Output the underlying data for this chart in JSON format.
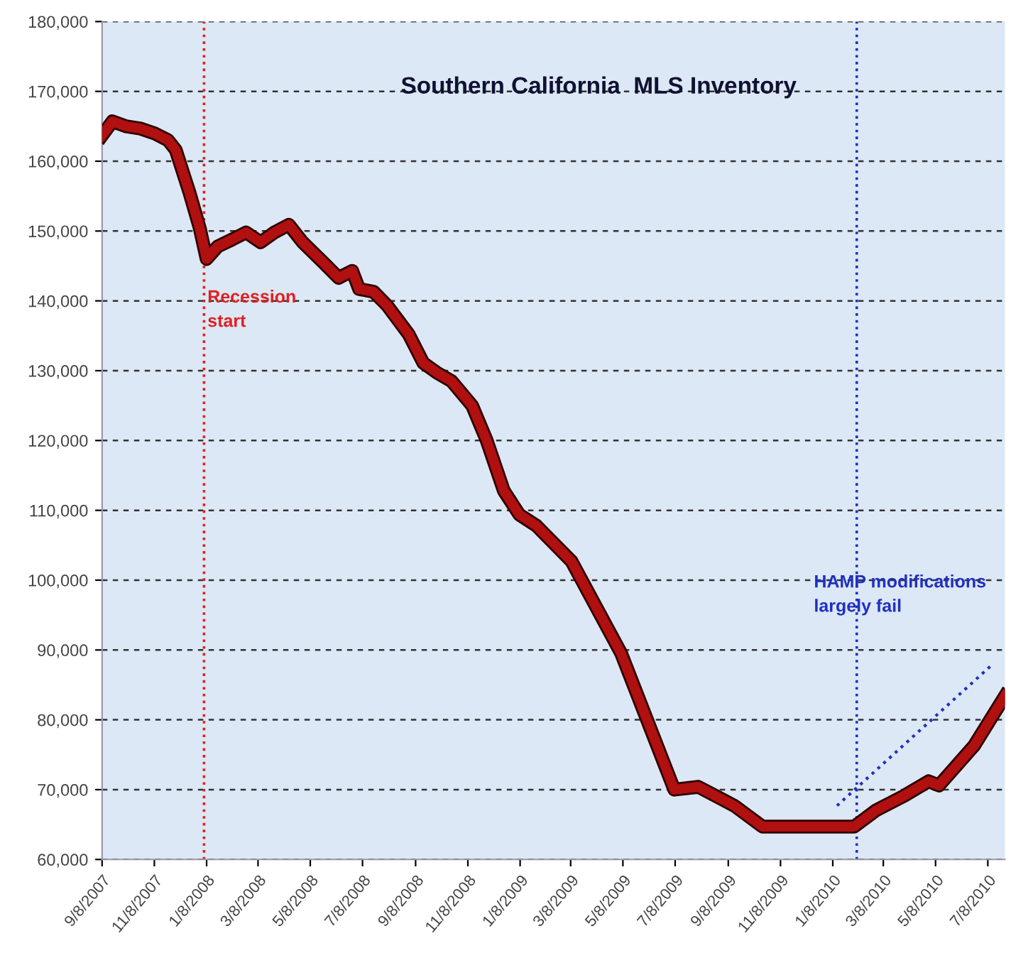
{
  "chart_data": {
    "type": "line",
    "title": "Southern California  MLS Inventory",
    "x": [
      "2007-09-08",
      "2007-09-20",
      "2007-10-06",
      "2007-10-22",
      "2007-11-08",
      "2007-11-24",
      "2007-12-03",
      "2007-12-19",
      "2007-12-31",
      "2008-01-08",
      "2008-01-21",
      "2008-02-07",
      "2008-02-23",
      "2008-03-11",
      "2008-03-27",
      "2008-04-13",
      "2008-04-29",
      "2008-05-24",
      "2008-06-10",
      "2008-06-26",
      "2008-07-04",
      "2008-07-21",
      "2008-08-06",
      "2008-08-31",
      "2008-09-17",
      "2008-10-03",
      "2008-10-20",
      "2008-11-13",
      "2008-11-30",
      "2008-12-20",
      "2009-01-07",
      "2009-01-27",
      "2009-03-09",
      "2009-05-06",
      "2009-07-07",
      "2009-08-04",
      "2009-09-15",
      "2009-10-18",
      "2010-02-02",
      "2010-02-27",
      "2010-04-01",
      "2010-04-30",
      "2010-05-12",
      "2010-06-22",
      "2010-07-28"
    ],
    "series": [
      {
        "color": "#b01010",
        "values": [
          163700,
          165700,
          165000,
          164700,
          164000,
          163000,
          161600,
          155500,
          150400,
          146000,
          147800,
          148800,
          149800,
          148400,
          149800,
          150900,
          148400,
          145400,
          143300,
          144300,
          141700,
          141300,
          139300,
          135200,
          131100,
          129700,
          128500,
          125000,
          120000,
          112800,
          109400,
          107800,
          102700,
          89500,
          70000,
          70400,
          67700,
          64700,
          64700,
          67000,
          69100,
          71200,
          70600,
          76300,
          83400
        ]
      },
      {
        "color": "#2030c0",
        "line_style": "dotted",
        "x": [
          "2010-01-13",
          "2010-07-14"
        ],
        "values": [
          67700,
          88000
        ]
      }
    ],
    "xlim": [
      "2007-09-08",
      "2010-07-28"
    ],
    "xticks": [
      {
        "value": "2007-09-08",
        "label": "9/8/2007"
      },
      {
        "value": "2007-11-08",
        "label": "11/8/2007"
      },
      {
        "value": "2008-01-08",
        "label": "1/8/2008"
      },
      {
        "value": "2008-03-08",
        "label": "3/8/2008"
      },
      {
        "value": "2008-05-08",
        "label": "5/8/2008"
      },
      {
        "value": "2008-07-08",
        "label": "7/8/2008"
      },
      {
        "value": "2008-09-08",
        "label": "9/8/2008"
      },
      {
        "value": "2008-11-08",
        "label": "11/8/2008"
      },
      {
        "value": "2009-01-08",
        "label": "1/8/2009"
      },
      {
        "value": "2009-03-08",
        "label": "3/8/2009"
      },
      {
        "value": "2009-05-08",
        "label": "5/8/2009"
      },
      {
        "value": "2009-07-08",
        "label": "7/8/2009"
      },
      {
        "value": "2009-09-08",
        "label": "9/8/2009"
      },
      {
        "value": "2009-11-08",
        "label": "11/8/2009"
      },
      {
        "value": "2010-01-08",
        "label": "1/8/2010"
      },
      {
        "value": "2010-03-08",
        "label": "3/8/2010"
      },
      {
        "value": "2010-05-08",
        "label": "5/8/2010"
      },
      {
        "value": "2010-07-08",
        "label": "7/8/2010"
      }
    ],
    "ylim": [
      60000,
      180000
    ],
    "yticks": [
      {
        "value": 60000,
        "label": "60,000"
      },
      {
        "value": 70000,
        "label": "70,000"
      },
      {
        "value": 80000,
        "label": "80,000"
      },
      {
        "value": 90000,
        "label": "90,000"
      },
      {
        "value": 100000,
        "label": "100,000"
      },
      {
        "value": 110000,
        "label": "110,000"
      },
      {
        "value": 120000,
        "label": "120,000"
      },
      {
        "value": 130000,
        "label": "130,000"
      },
      {
        "value": 140000,
        "label": "140,000"
      },
      {
        "value": 150000,
        "label": "150,000"
      },
      {
        "value": 160000,
        "label": "160,000"
      },
      {
        "value": 170000,
        "label": "170,000"
      },
      {
        "value": 180000,
        "label": "180,000"
      }
    ],
    "grid": "y",
    "marker": "none",
    "line_style": "solid",
    "ref_lines": [
      {
        "axis": "x",
        "value": "2008-01-05",
        "label": "Recession\nstart",
        "color": "#e02020",
        "line_style": "dotted"
      },
      {
        "axis": "x",
        "value": "2010-02-05",
        "label": "HAMP modifications\nlargely fail",
        "color": "#2030c0",
        "line_style": "dotted"
      }
    ]
  }
}
